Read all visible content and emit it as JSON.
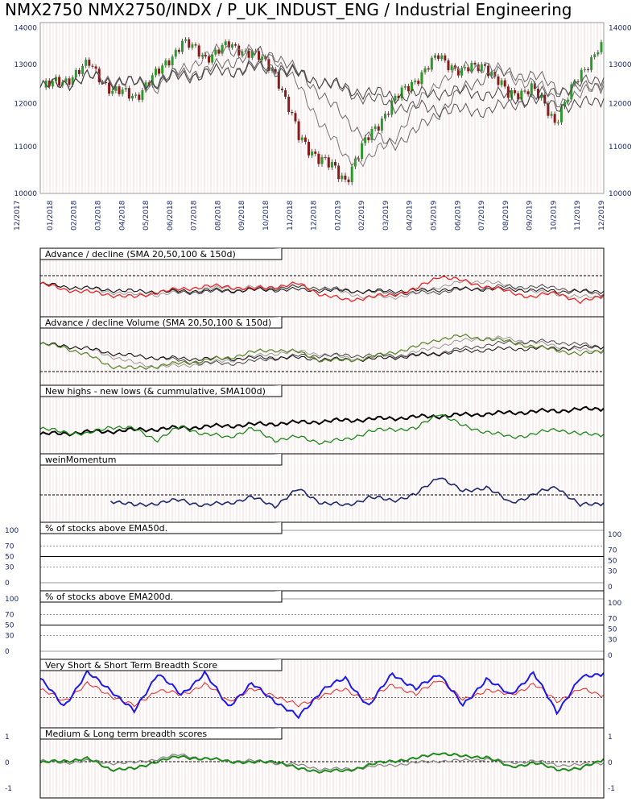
{
  "header": {
    "title": "NMX2750 NMX2750/INDX / P_UK_INDUST_ENG / Industrial Engineering"
  },
  "chart_data": [
    {
      "type": "candlestick",
      "x_ticks": [
        "12/2017",
        "01/2018",
        "02/2018",
        "03/2018",
        "04/2018",
        "05/2018",
        "06/2018",
        "07/2018",
        "08/2018",
        "09/2018",
        "10/2018",
        "11/2018",
        "12/2018",
        "01/2019",
        "02/2019",
        "03/2019",
        "04/2019",
        "05/2019",
        "06/2019",
        "07/2019",
        "08/2019",
        "09/2019",
        "10/2019",
        "11/2019",
        "12/2019"
      ],
      "y_ticks": [
        14000,
        13000,
        12000,
        11000,
        10000
      ],
      "ylim": [
        10000,
        14150
      ],
      "y_scale": "log",
      "close_by_month": [
        12400,
        12600,
        13000,
        12300,
        12200,
        12800,
        13600,
        13200,
        13500,
        13300,
        12800,
        11200,
        10700,
        10300,
        11200,
        12000,
        12600,
        13200,
        12800,
        13000,
        12200,
        12400,
        11600,
        12600,
        13600
      ],
      "overlays": [
        "SMA 20",
        "SMA 50",
        "SMA 100",
        "SMA 150"
      ]
    },
    {
      "type": "line",
      "title": "Advance / decline (SMA 20,50,100 & 150d)",
      "series_color": "#ee2222",
      "values_by_month": [
        0.55,
        0.45,
        0.4,
        0.35,
        0.3,
        0.4,
        0.45,
        0.5,
        0.5,
        0.45,
        0.5,
        0.55,
        0.35,
        0.25,
        0.3,
        0.35,
        0.45,
        0.7,
        0.6,
        0.5,
        0.4,
        0.3,
        0.4,
        0.2,
        0.35
      ],
      "reference_line": "dashed"
    },
    {
      "type": "line",
      "title": "Advance / decline Volume (SMA 20,50,100 & 150d)",
      "series_color": "#5a8a2e",
      "values_by_month": [
        0.7,
        0.65,
        0.5,
        0.3,
        0.25,
        0.3,
        0.35,
        0.4,
        0.45,
        0.55,
        0.6,
        0.55,
        0.4,
        0.4,
        0.45,
        0.55,
        0.65,
        0.8,
        0.85,
        0.8,
        0.75,
        0.65,
        0.6,
        0.5,
        0.6
      ],
      "reference_line": "dashed"
    },
    {
      "type": "line",
      "title": "New highs - new lows (& cummulative, SMA100d)",
      "series_color": "#1a8a1a",
      "values_by_month": [
        0.4,
        0.35,
        0.3,
        0.45,
        0.4,
        0.2,
        0.45,
        0.3,
        0.25,
        0.4,
        0.2,
        0.25,
        0.15,
        0.2,
        0.35,
        0.4,
        0.4,
        0.7,
        0.45,
        0.35,
        0.25,
        0.3,
        0.4,
        0.3,
        0.3
      ]
    },
    {
      "type": "line",
      "title": "weinMomentum",
      "series_color": "#1a2a6c",
      "values_by_month": [
        null,
        null,
        null,
        0.35,
        0.25,
        0.3,
        0.35,
        0.25,
        0.3,
        0.4,
        0.25,
        0.55,
        0.3,
        0.25,
        0.4,
        0.35,
        0.45,
        0.8,
        0.5,
        0.6,
        0.3,
        0.45,
        0.6,
        0.25,
        0.3
      ]
    },
    {
      "type": "line",
      "title": "% of stocks above EMA50d.",
      "y_ticks": [
        100,
        70,
        50,
        30,
        0
      ],
      "values": []
    },
    {
      "type": "line",
      "title": "% of stocks above EMA200d.",
      "y_ticks": [
        100,
        70,
        50,
        30,
        0
      ],
      "values": []
    },
    {
      "type": "line",
      "title": "Very Short & Short Term Breadth Score",
      "series": [
        {
          "color": "#ee2222",
          "values_by_month": [
            0.6,
            0.4,
            0.7,
            0.5,
            0.3,
            0.6,
            0.5,
            0.7,
            0.4,
            0.6,
            0.5,
            0.3,
            0.5,
            0.6,
            0.4,
            0.7,
            0.5,
            0.8,
            0.4,
            0.6,
            0.5,
            0.7,
            0.4,
            0.6,
            0.5
          ]
        },
        {
          "color": "#1a1aee",
          "values_by_month": [
            0.8,
            0.3,
            0.9,
            0.6,
            0.2,
            0.9,
            0.5,
            0.9,
            0.3,
            0.7,
            0.4,
            0.1,
            0.6,
            0.8,
            0.3,
            0.9,
            0.6,
            0.9,
            0.3,
            0.8,
            0.5,
            0.9,
            0.2,
            0.8,
            0.9
          ]
        }
      ]
    },
    {
      "type": "line",
      "title": "Medium & Long term breadth scores",
      "y_ticks": [
        1,
        0,
        -1
      ],
      "series": [
        {
          "color": "#888888",
          "values_by_month": [
            0.55,
            0.5,
            0.55,
            0.5,
            0.5,
            0.6,
            0.7,
            0.6,
            0.55,
            0.55,
            0.5,
            0.45,
            0.35,
            0.35,
            0.4,
            0.45,
            0.5,
            0.55,
            0.55,
            0.6,
            0.5,
            0.55,
            0.45,
            0.45,
            0.5
          ]
        },
        {
          "color": "#1a8a1a",
          "values_by_month": [
            0.5,
            0.55,
            0.6,
            0.35,
            0.35,
            0.55,
            0.65,
            0.6,
            0.55,
            0.5,
            0.55,
            0.35,
            0.3,
            0.3,
            0.45,
            0.55,
            0.6,
            0.75,
            0.65,
            0.65,
            0.4,
            0.5,
            0.35,
            0.35,
            0.6
          ]
        }
      ]
    }
  ]
}
